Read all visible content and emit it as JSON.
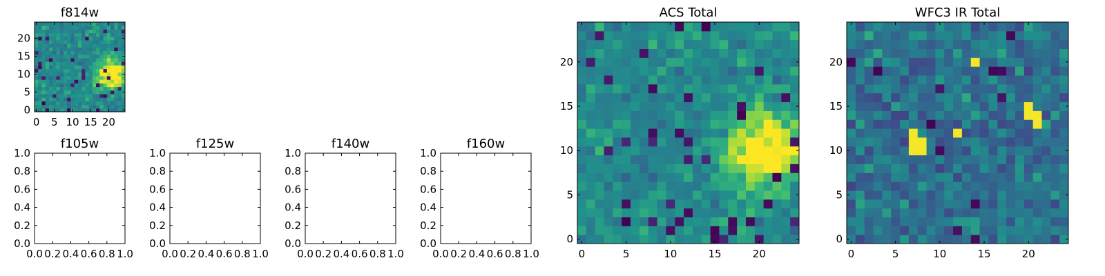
{
  "chart_data": [
    {
      "id": "f814w",
      "type": "heatmap",
      "title": "f814w",
      "x_ticks": [
        0,
        5,
        10,
        15,
        20
      ],
      "y_ticks": [
        0,
        5,
        10,
        15,
        20
      ],
      "xlim": [
        -0.5,
        24.5
      ],
      "ylim": [
        -0.5,
        24.5
      ],
      "grid_size": [
        25,
        25
      ],
      "colormap": "viridis",
      "hot_spot": {
        "x": 21,
        "y": 10
      }
    },
    {
      "id": "f105w",
      "type": "heatmap",
      "title": "f105w",
      "x_ticks": [
        "0.0",
        "0.2",
        "0.4",
        "0.6",
        "0.8",
        "1.0"
      ],
      "y_ticks": [
        "0.0",
        "0.2",
        "0.4",
        "0.6",
        "0.8",
        "1.0"
      ],
      "xlim": [
        0,
        1
      ],
      "ylim": [
        0,
        1
      ],
      "empty": true
    },
    {
      "id": "f125w",
      "type": "heatmap",
      "title": "f125w",
      "x_ticks": [
        "0.0",
        "0.2",
        "0.4",
        "0.6",
        "0.8",
        "1.0"
      ],
      "y_ticks": [
        "0.0",
        "0.2",
        "0.4",
        "0.6",
        "0.8",
        "1.0"
      ],
      "xlim": [
        0,
        1
      ],
      "ylim": [
        0,
        1
      ],
      "empty": true
    },
    {
      "id": "f140w",
      "type": "heatmap",
      "title": "f140w",
      "x_ticks": [
        "0.0",
        "0.2",
        "0.4",
        "0.6",
        "0.8",
        "1.0"
      ],
      "y_ticks": [
        "0.0",
        "0.2",
        "0.4",
        "0.6",
        "0.8",
        "1.0"
      ],
      "xlim": [
        0,
        1
      ],
      "ylim": [
        0,
        1
      ],
      "empty": true
    },
    {
      "id": "f160w",
      "type": "heatmap",
      "title": "f160w",
      "x_ticks": [
        "0.0",
        "0.2",
        "0.4",
        "0.6",
        "0.8",
        "1.0"
      ],
      "y_ticks": [
        "0.0",
        "0.2",
        "0.4",
        "0.6",
        "0.8",
        "1.0"
      ],
      "xlim": [
        0,
        1
      ],
      "ylim": [
        0,
        1
      ],
      "empty": true
    },
    {
      "id": "acs-total",
      "type": "heatmap",
      "title": "ACS Total",
      "x_ticks": [
        0,
        5,
        10,
        15,
        20
      ],
      "y_ticks": [
        0,
        5,
        10,
        15,
        20
      ],
      "xlim": [
        -0.5,
        24.5
      ],
      "ylim": [
        -0.5,
        24.5
      ],
      "grid_size": [
        25,
        25
      ],
      "colormap": "viridis",
      "hot_spot": {
        "x": 21,
        "y": 10
      }
    },
    {
      "id": "wfc3-ir-total",
      "type": "heatmap",
      "title": "WFC3 IR Total",
      "x_ticks": [
        0,
        5,
        10,
        15,
        20
      ],
      "y_ticks": [
        0,
        5,
        10,
        15,
        20
      ],
      "xlim": [
        -0.5,
        24.5
      ],
      "ylim": [
        -0.5,
        24.5
      ],
      "grid_size": [
        25,
        25
      ],
      "colormap": "viridis",
      "bright_pixels": [
        {
          "x": 14,
          "y": 20
        },
        {
          "x": 20,
          "y": 15
        },
        {
          "x": 20,
          "y": 14
        },
        {
          "x": 21,
          "y": 14
        },
        {
          "x": 21,
          "y": 13
        },
        {
          "x": 12,
          "y": 12
        },
        {
          "x": 7,
          "y": 12
        },
        {
          "x": 7,
          "y": 11
        },
        {
          "x": 8,
          "y": 11
        },
        {
          "x": 7,
          "y": 10
        },
        {
          "x": 8,
          "y": 10
        }
      ]
    }
  ]
}
